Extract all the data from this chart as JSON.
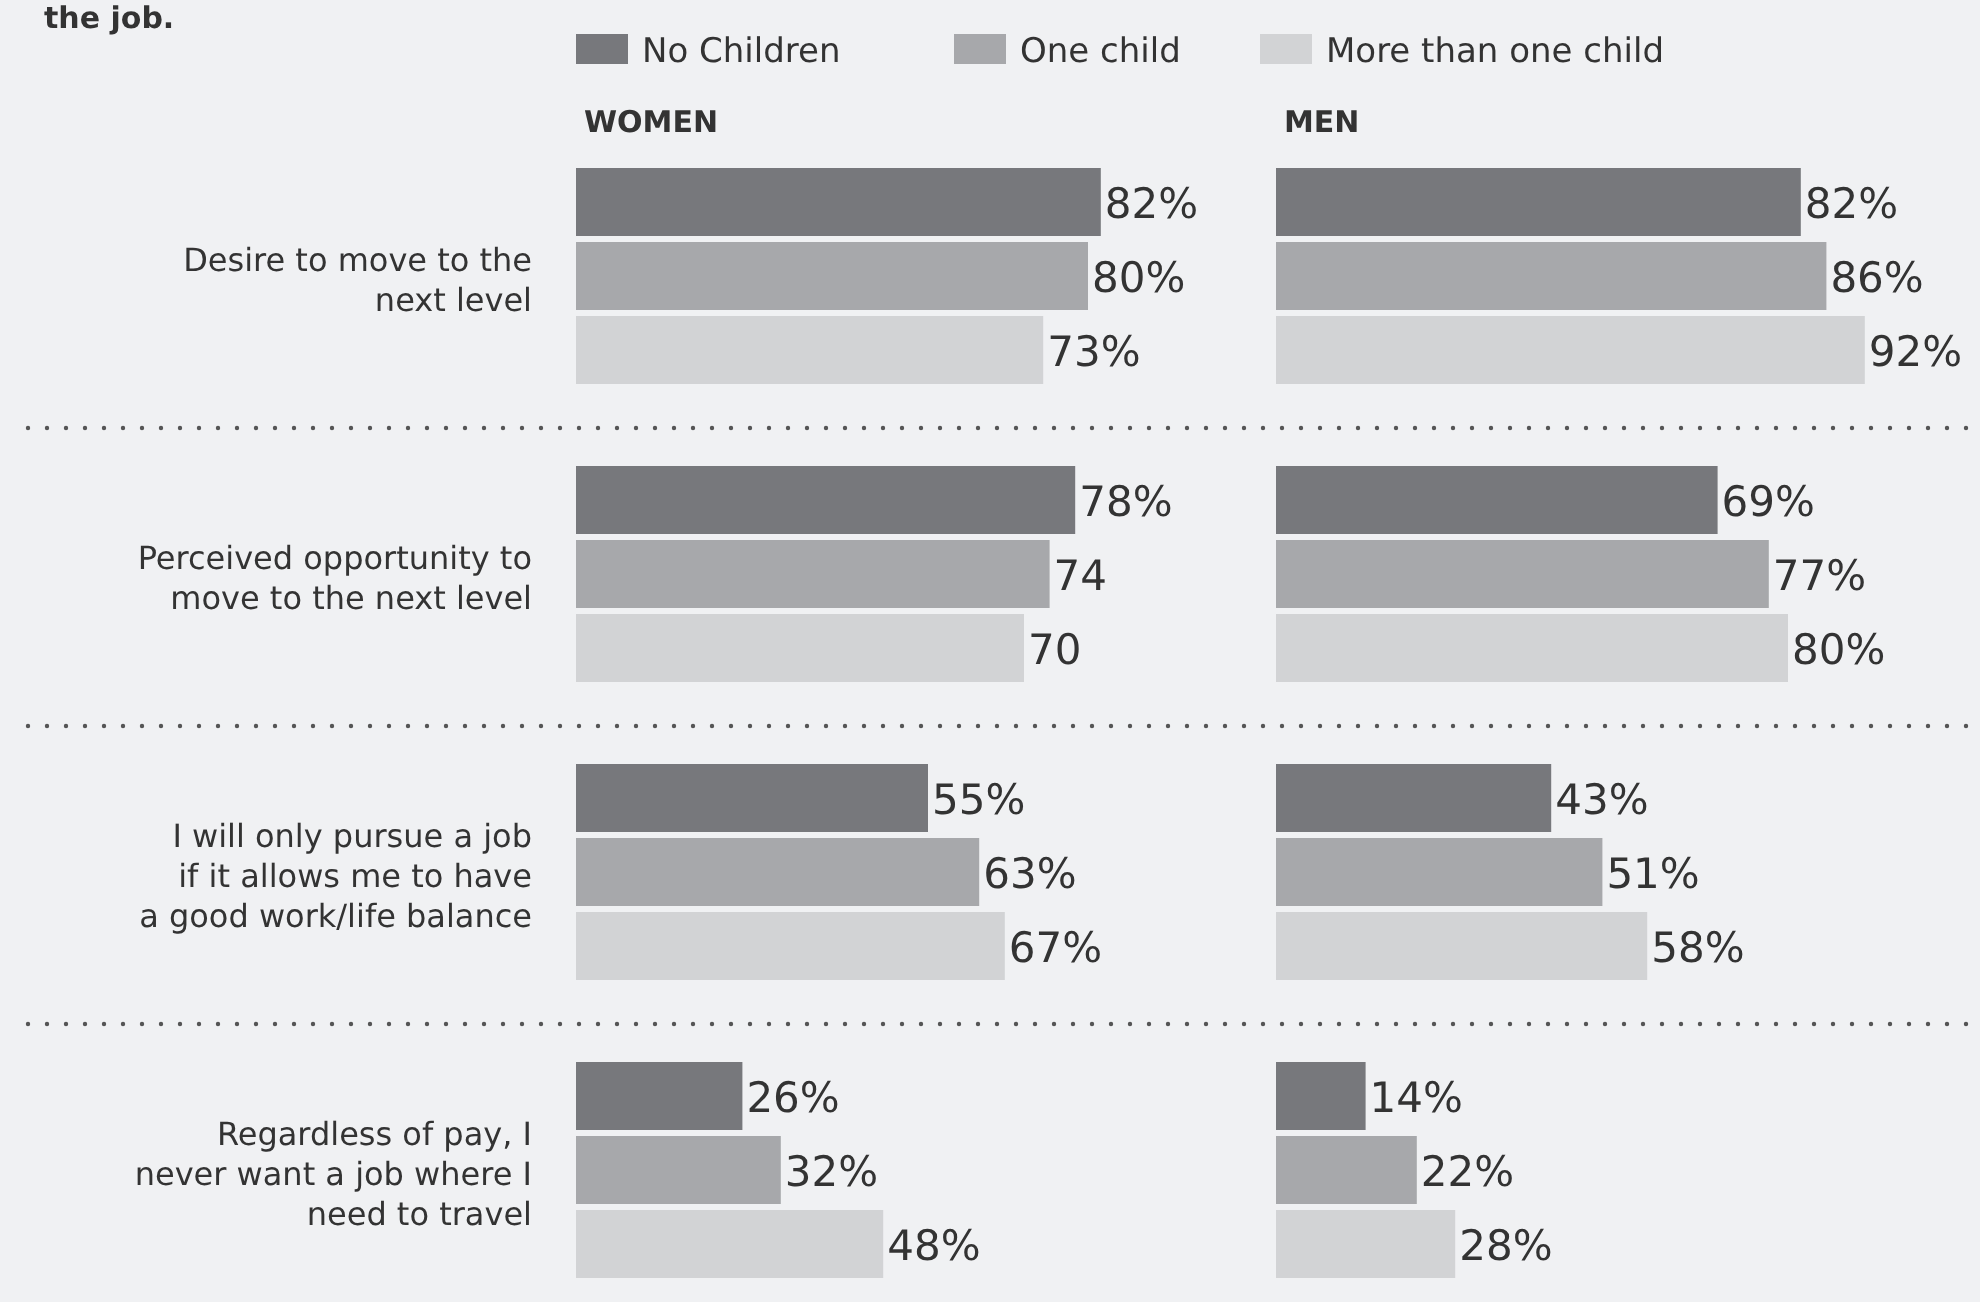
{
  "chart_data": [
    {
      "type": "bar",
      "orientation": "horizontal",
      "title": "the job.",
      "subtitle": "WOMEN",
      "categories": [
        "Desire to move to the next level",
        "Perceived opportunity to move to the next level",
        "I will only pursue a job if it allows me to have a good work/life balance",
        "Regardless of pay, I never want a job where I need to travel"
      ],
      "legend": "top",
      "series": [
        {
          "name": "No Children",
          "color": "#77787c",
          "values": [
            82,
            78,
            55,
            26
          ],
          "value_labels": [
            "82%",
            "78%",
            "55%",
            "26%"
          ]
        },
        {
          "name": "One child",
          "color": "#a7a8ab",
          "values": [
            80,
            74,
            63,
            32
          ],
          "value_labels": [
            "80%",
            "74",
            "63%",
            "32%"
          ]
        },
        {
          "name": "More than one child",
          "color": "#d2d3d5",
          "values": [
            73,
            70,
            67,
            48
          ],
          "value_labels": [
            "73%",
            "70",
            "67%",
            "48%"
          ]
        }
      ]
    },
    {
      "type": "bar",
      "orientation": "horizontal",
      "subtitle": "MEN",
      "categories": [
        null,
        null,
        null,
        null
      ],
      "series": [
        {
          "color": "#77787c",
          "values": [
            82,
            69,
            43,
            14
          ],
          "value_labels": [
            "82%",
            "69%",
            "43%",
            "14%"
          ]
        },
        {
          "color": "#a7a8ab",
          "values": [
            86,
            77,
            51,
            22
          ],
          "value_labels": [
            "86%",
            "77%",
            "51%",
            "22%"
          ]
        },
        {
          "color": "#d2d3d5",
          "values": [
            92,
            80,
            58,
            28
          ],
          "value_labels": [
            "92%",
            "80%",
            "58%",
            "28%"
          ]
        }
      ]
    }
  ]
}
